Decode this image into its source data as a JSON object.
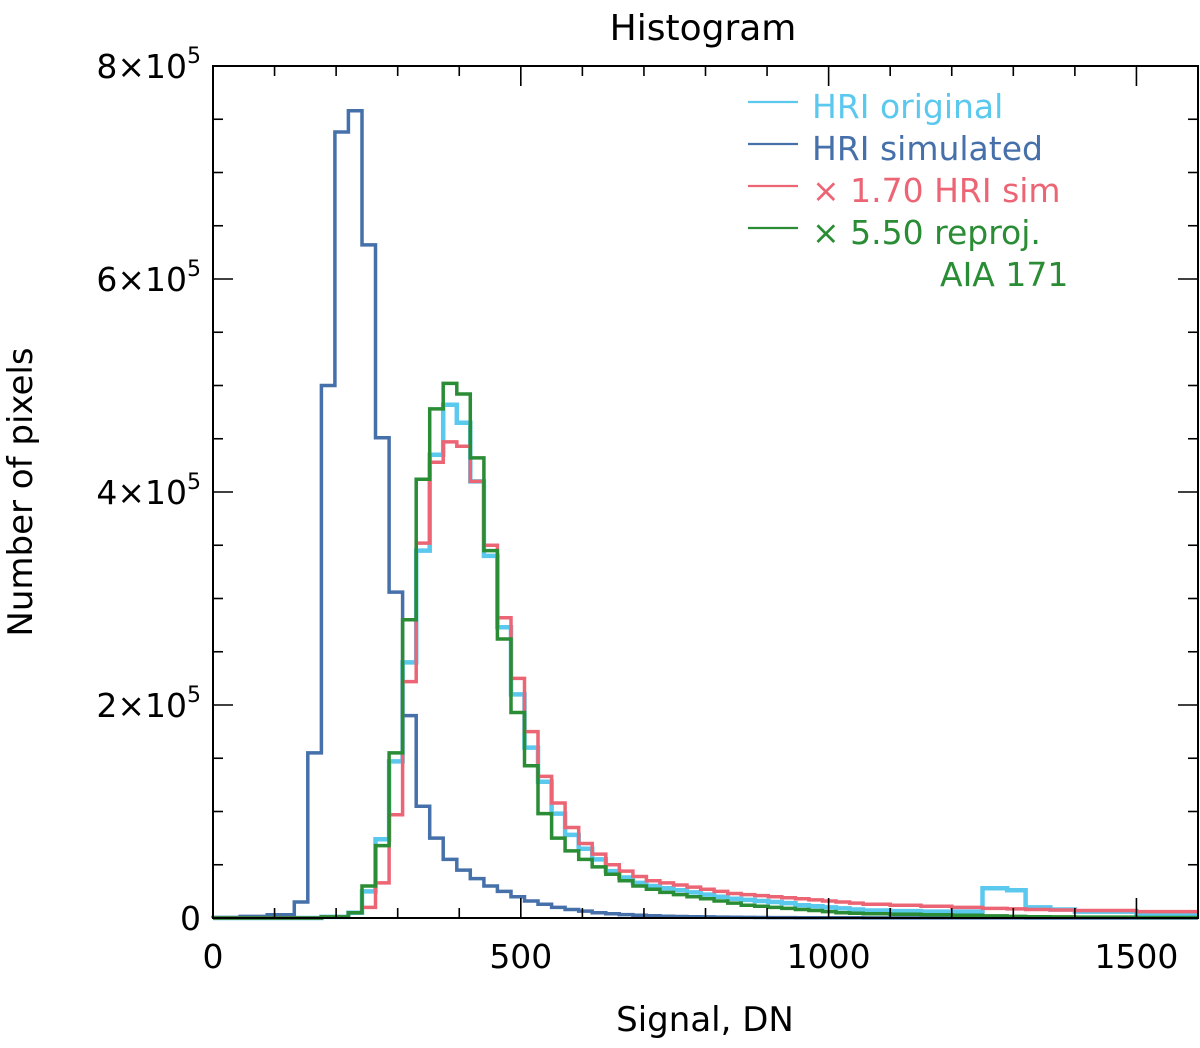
{
  "chart_data": {
    "type": "histogram",
    "title": "Histogram",
    "xlabel": "Signal, DN",
    "ylabel": "Number of pixels",
    "xlim": [
      0,
      1600
    ],
    "ylim": [
      0,
      800000
    ],
    "grid": false,
    "legend_position": "top-right",
    "x_ticks": [
      {
        "value": 0,
        "label": "0"
      },
      {
        "value": 500,
        "label": "500"
      },
      {
        "value": 1000,
        "label": "1000"
      },
      {
        "value": 1500,
        "label": "1500"
      }
    ],
    "y_ticks": [
      {
        "value": 0,
        "label": "0",
        "exp": ""
      },
      {
        "value": 200000,
        "label": "2×10",
        "exp": "5"
      },
      {
        "value": 400000,
        "label": "4×10",
        "exp": "5"
      },
      {
        "value": 600000,
        "label": "6×10",
        "exp": "5"
      },
      {
        "value": 800000,
        "label": "8×10",
        "exp": "5"
      }
    ],
    "x_minor_step": 100,
    "y_minor_step": 50000,
    "bin_edges": [
      0,
      44,
      88,
      132,
      154,
      176,
      198,
      220,
      242,
      264,
      286,
      308,
      330,
      352,
      374,
      396,
      418,
      440,
      462,
      484,
      506,
      528,
      550,
      572,
      594,
      616,
      638,
      660,
      682,
      704,
      726,
      748,
      770,
      792,
      814,
      836,
      858,
      880,
      902,
      924,
      946,
      968,
      990,
      1012,
      1034,
      1056,
      1100,
      1150,
      1200,
      1250,
      1290,
      1320,
      1360,
      1400,
      1500,
      1600
    ],
    "series": [
      {
        "name": "HRI original",
        "legend_label": "HRI original",
        "color": "#5BC8EE",
        "line_width": 4.5,
        "values": [
          0,
          0,
          0,
          0,
          0,
          1000,
          1000,
          5000,
          25000,
          74000,
          147000,
          240000,
          345000,
          435000,
          482000,
          465000,
          410000,
          340000,
          273000,
          210000,
          160000,
          128000,
          98000,
          78000,
          65000,
          55000,
          44000,
          38000,
          33000,
          30000,
          28000,
          26000,
          24000,
          22000,
          20000,
          18000,
          17000,
          16000,
          15000,
          14000,
          12000,
          11000,
          10000,
          9000,
          8000,
          7000,
          6500,
          6000,
          6000,
          28000,
          26000,
          10000,
          8000,
          6000,
          4000
        ]
      },
      {
        "name": "HRI simulated",
        "legend_label": "HRI simulated",
        "color": "#4670AA",
        "line_width": 3.5,
        "values": [
          500,
          1500,
          3000,
          15000,
          155000,
          500000,
          738000,
          758000,
          632000,
          451000,
          306000,
          190000,
          105000,
          75000,
          55000,
          45000,
          37000,
          30000,
          25000,
          20000,
          16000,
          13000,
          10000,
          8000,
          6500,
          5000,
          4000,
          3200,
          2600,
          2100,
          1700,
          1400,
          1200,
          1000,
          800,
          700,
          600,
          500,
          400,
          350,
          300,
          250,
          200,
          180,
          160,
          140,
          120,
          100,
          80,
          60,
          50,
          40,
          30,
          20,
          10
        ]
      },
      {
        "name": "× 1.70 HRI sim",
        "legend_label": "× 1.70 HRI sim",
        "color": "#EC6575",
        "line_width": 3.5,
        "values": [
          0,
          0,
          0,
          0,
          0,
          1000,
          1000,
          5000,
          10000,
          33000,
          97000,
          222000,
          352000,
          428000,
          447000,
          443000,
          410000,
          350000,
          282000,
          225000,
          175000,
          133000,
          108000,
          85000,
          70000,
          60000,
          50000,
          44000,
          39000,
          35000,
          33000,
          31000,
          29000,
          27000,
          25000,
          23000,
          22000,
          21000,
          20000,
          19000,
          18000,
          17000,
          16000,
          15000,
          14000,
          13000,
          12000,
          11000,
          10000,
          9000,
          8500,
          8000,
          7500,
          7000,
          6000
        ]
      },
      {
        "name": "× 5.50 reproj. AIA 171",
        "legend_label": "× 5.50 reproj.",
        "legend_label_2": "AIA 171",
        "color": "#2A8C34",
        "line_width": 3.5,
        "values": [
          0,
          0,
          0,
          0,
          0,
          1000,
          1000,
          5000,
          30000,
          68000,
          155000,
          280000,
          412000,
          478000,
          502000,
          492000,
          432000,
          345000,
          262000,
          193000,
          143000,
          98000,
          75000,
          63000,
          55000,
          48000,
          41000,
          35000,
          30000,
          27000,
          24000,
          22000,
          20000,
          18000,
          16000,
          14000,
          12000,
          11000,
          10000,
          9000,
          8000,
          7000,
          6000,
          5000,
          4500,
          4000,
          3500,
          3000,
          2500,
          2000,
          1500,
          1200,
          1000,
          800,
          500
        ]
      }
    ]
  }
}
